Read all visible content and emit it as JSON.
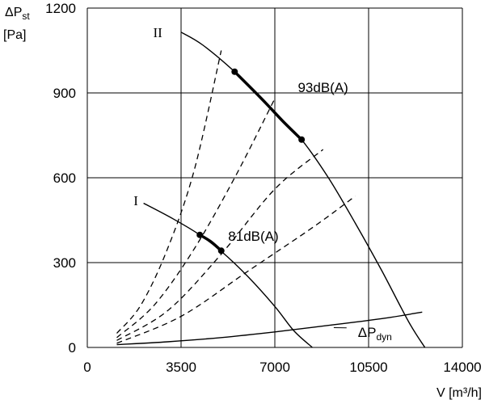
{
  "chart_data": {
    "type": "line",
    "title": "",
    "xlabel": "V [m³/h]",
    "ylabel_main": "ΔP",
    "ylabel_sub": "st",
    "ylabel_unit": "[Pa]",
    "xlim": [
      0,
      14000
    ],
    "ylim": [
      0,
      1200
    ],
    "x_ticks": [
      "0",
      "3500",
      "7000",
      "10500",
      "14000"
    ],
    "y_ticks": [
      "0",
      "300",
      "600",
      "900",
      "1200"
    ],
    "x_tick_values": [
      0,
      3500,
      7000,
      10500,
      14000
    ],
    "y_tick_values": [
      0,
      300,
      600,
      900,
      1200
    ],
    "grid": true,
    "series": [
      {
        "name": "I",
        "style": "solid",
        "points": [
          [
            2100,
            510
          ],
          [
            3200,
            455
          ],
          [
            4200,
            398
          ],
          [
            5000,
            340
          ],
          [
            6000,
            250
          ],
          [
            7000,
            145
          ],
          [
            7700,
            60
          ],
          [
            8400,
            0
          ]
        ],
        "bold_range": [
          [
            4200,
            398
          ],
          [
            4600,
            375
          ],
          [
            5000,
            342
          ]
        ]
      },
      {
        "name": "II",
        "style": "solid",
        "points": [
          [
            3500,
            1115
          ],
          [
            4300,
            1070
          ],
          [
            5500,
            975
          ],
          [
            6500,
            880
          ],
          [
            7300,
            800
          ],
          [
            8000,
            735
          ],
          [
            9000,
            600
          ],
          [
            10000,
            440
          ],
          [
            11000,
            270
          ],
          [
            12000,
            90
          ],
          [
            12600,
            0
          ]
        ],
        "bold_range": [
          [
            5500,
            975
          ],
          [
            6500,
            880
          ],
          [
            7300,
            800
          ],
          [
            8000,
            735
          ]
        ]
      },
      {
        "name": "ΔP",
        "name_sub": "dyn",
        "style": "solid",
        "points": [
          [
            1100,
            10
          ],
          [
            3000,
            20
          ],
          [
            5000,
            35
          ],
          [
            7000,
            55
          ],
          [
            9000,
            78
          ],
          [
            11000,
            102
          ],
          [
            12500,
            125
          ]
        ]
      }
    ],
    "system_curves": [
      [
        [
          1100,
          50
        ],
        [
          2000,
          150
        ],
        [
          3000,
          350
        ],
        [
          4000,
          630
        ],
        [
          5000,
          1050
        ]
      ],
      [
        [
          1100,
          35
        ],
        [
          2500,
          150
        ],
        [
          4000,
          350
        ],
        [
          5500,
          600
        ],
        [
          7000,
          880
        ]
      ],
      [
        [
          1100,
          25
        ],
        [
          3000,
          130
        ],
        [
          5000,
          330
        ],
        [
          7000,
          560
        ],
        [
          8800,
          700
        ]
      ],
      [
        [
          1100,
          15
        ],
        [
          3500,
          110
        ],
        [
          6000,
          270
        ],
        [
          8500,
          430
        ],
        [
          10000,
          535
        ]
      ]
    ],
    "points": [
      [
        4200,
        398
      ],
      [
        5000,
        342
      ],
      [
        5500,
        975
      ],
      [
        8000,
        735
      ]
    ],
    "annotations": [
      {
        "text": "93dB(A)",
        "x": 8800,
        "y": 920
      },
      {
        "text": "81dB(A)",
        "x": 6200,
        "y": 395
      }
    ],
    "roman_labels": [
      {
        "text": "II",
        "x": 2800,
        "y": 1115
      },
      {
        "text": "I",
        "x": 1900,
        "y": 520
      }
    ],
    "dyn_label_anchor": {
      "x": 10100,
      "y": 55
    }
  }
}
